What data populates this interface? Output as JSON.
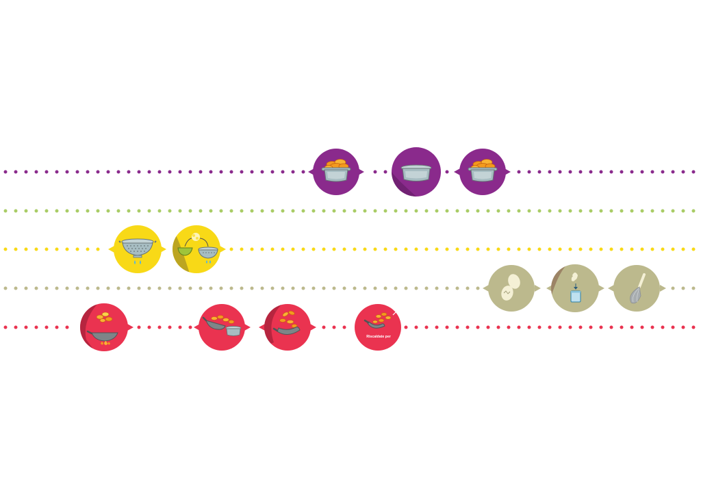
{
  "colors": {
    "background": "#ffffff",
    "purple": "#8a2a8c",
    "light_green": "#a9cc66",
    "yellow": "#f8d917",
    "olive": "#bcb98d",
    "red": "#ea3350",
    "steel": "#a7bdc2",
    "steel_dark": "#687577",
    "orange": "#f39a1e",
    "orange_light": "#f9b233",
    "water": "#4fb3e8",
    "herb_green": "#9fc43a",
    "egg": "#f4f0d5"
  },
  "lanes": [
    {
      "id": "purple-lane",
      "color": "purple",
      "steps": [
        {
          "id": "pot-with-food",
          "icon": "pot-with-food-icon",
          "shade": false,
          "connectors": "both"
        },
        {
          "id": "empty-pot",
          "icon": "empty-pot-icon",
          "shade": true,
          "connectors": "none"
        },
        {
          "id": "pot-with-food-2",
          "icon": "pot-with-food-icon",
          "shade": false,
          "connectors": "both"
        }
      ]
    },
    {
      "id": "green-lane",
      "color": "light_green",
      "steps": []
    },
    {
      "id": "yellow-lane",
      "color": "yellow",
      "steps": [
        {
          "id": "drain-colander",
          "icon": "colander-icon",
          "shade": false,
          "connectors": "both"
        },
        {
          "id": "transfer-to-colander",
          "icon": "bowl-to-colander-icon",
          "shade": true,
          "connectors": "both"
        }
      ]
    },
    {
      "id": "olive-lane",
      "color": "olive",
      "steps": [
        {
          "id": "eggs",
          "icon": "eggs-icon",
          "shade": false,
          "connectors": "both"
        },
        {
          "id": "crack-egg-into-cup",
          "icon": "egg-into-cup-icon",
          "shade": true,
          "connectors": "both"
        },
        {
          "id": "whisk",
          "icon": "whisk-icon",
          "shade": false,
          "connectors": "both"
        }
      ]
    },
    {
      "id": "red-lane",
      "color": "red",
      "steps": [
        {
          "id": "toss-wok-over-flame",
          "icon": "wok-over-flame-icon",
          "shade": true,
          "connectors": "right"
        },
        {
          "id": "wok-to-pot",
          "icon": "wok-to-pot-icon",
          "shade": false,
          "connectors": "both"
        },
        {
          "id": "toss-wok",
          "icon": "wok-toss-icon",
          "shade": true,
          "connectors": "both"
        },
        {
          "id": "wok-finish",
          "icon": "wok-finish-icon",
          "shade": false,
          "connectors": "none",
          "caption": "Riscaldate per"
        }
      ]
    }
  ]
}
